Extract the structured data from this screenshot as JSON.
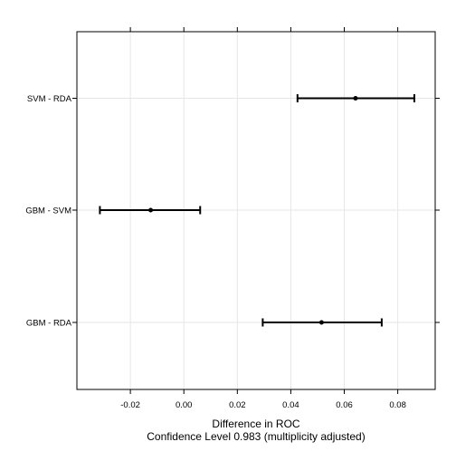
{
  "chart_data": {
    "type": "errorbar",
    "xlabel": "Difference in ROC",
    "subtitle": "Confidence Level 0.983  (multiplicity adjusted)",
    "xlim": [
      -0.04,
      0.094
    ],
    "xticks": [
      -0.02,
      0.0,
      0.02,
      0.04,
      0.06,
      0.08
    ],
    "xtick_labels": [
      "-0.02",
      "0.00",
      "0.02",
      "0.04",
      "0.06",
      "0.08"
    ],
    "grid": true,
    "categories": [
      "SVM - RDA",
      "GBM - SVM",
      "GBM - RDA"
    ],
    "estimates": [
      0.0642,
      -0.0124,
      0.0515
    ],
    "lower": [
      0.0425,
      -0.0314,
      0.0295
    ],
    "upper": [
      0.0862,
      0.0061,
      0.074
    ]
  }
}
